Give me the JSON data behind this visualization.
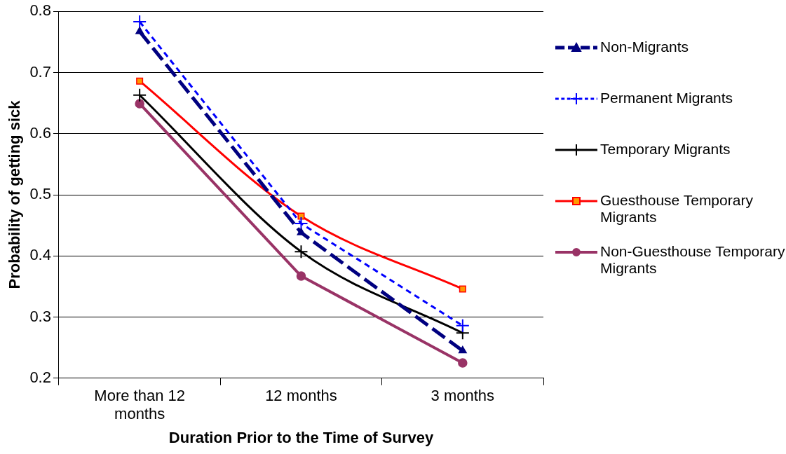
{
  "chart_data": {
    "type": "line",
    "xlabel": "Duration Prior to the Time of Survey",
    "ylabel": "Probability of getting sick",
    "categories": [
      "More than 12 months",
      "12 months",
      "3 months"
    ],
    "ylim": [
      0.2,
      0.8
    ],
    "yticks": [
      0.2,
      0.3,
      0.4,
      0.5,
      0.6,
      0.7,
      0.8
    ],
    "grid": "y",
    "legend": "right",
    "series": [
      {
        "name": "Non-Migrants",
        "color": "#000080",
        "values": [
          0.767,
          0.438,
          0.245
        ],
        "marker": "triangle",
        "line_style": "dashed"
      },
      {
        "name": "Permanent Migrants",
        "color": "#0000ff",
        "values": [
          0.783,
          0.453,
          0.286
        ],
        "marker": "cross",
        "line_style": "dotted"
      },
      {
        "name": "Temporary Migrants",
        "color": "#000000",
        "values": [
          0.663,
          0.407,
          0.274
        ],
        "marker": "cross",
        "line_style": "solid"
      },
      {
        "name": "Guesthouse Temporary Migrants",
        "color": "#ff0000",
        "values": [
          0.686,
          0.465,
          0.346
        ],
        "marker": "square",
        "line_style": "solid"
      },
      {
        "name": "Non-Guesthouse Temporary Migrants",
        "color": "#993366",
        "values": [
          0.649,
          0.367,
          0.225
        ],
        "marker": "circle",
        "line_style": "solid"
      }
    ]
  }
}
